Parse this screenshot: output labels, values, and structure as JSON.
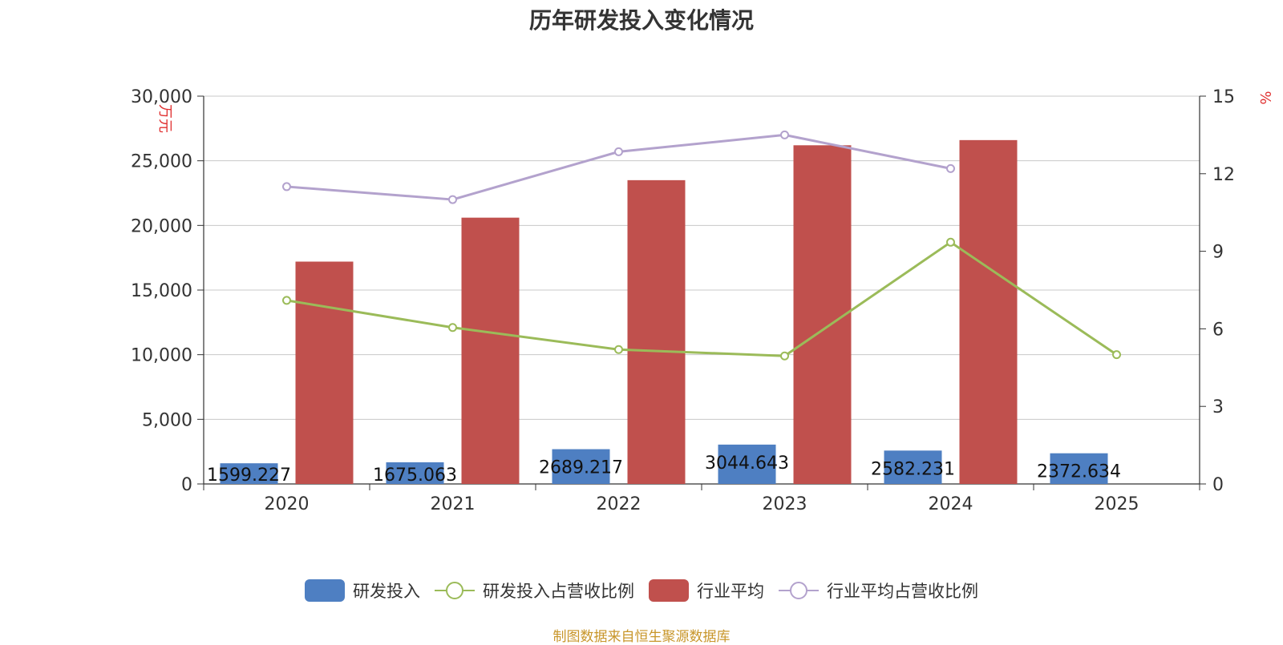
{
  "chart_data": {
    "type": "bar",
    "title": "历年研发投入变化情况",
    "categories": [
      "2020",
      "2021",
      "2022",
      "2023",
      "2024",
      "2025"
    ],
    "y_left": {
      "label": "万元",
      "range": [
        0,
        30000
      ],
      "ticks": [
        "0",
        "5,000",
        "10,000",
        "15,000",
        "20,000",
        "25,000",
        "30,000"
      ]
    },
    "y_right": {
      "label": "%",
      "range": [
        0,
        15
      ],
      "ticks": [
        "0",
        "3",
        "6",
        "9",
        "12",
        "15"
      ]
    },
    "grid": true,
    "legend_position": "bottom",
    "series": [
      {
        "name": "研发投入",
        "kind": "bar",
        "axis": "left",
        "color": "#4e7fc2",
        "values": [
          1599.227,
          1675.063,
          2689.217,
          3044.643,
          2582.231,
          2372.634
        ],
        "labels": [
          "1599.227",
          "1675.063",
          "2689.217",
          "3044.643",
          "2582.231",
          "2372.634"
        ]
      },
      {
        "name": "研发投入占营收比例",
        "kind": "line",
        "axis": "right",
        "color": "#9bbb59",
        "values": [
          7.1,
          6.05,
          5.2,
          4.95,
          9.35,
          5.0
        ]
      },
      {
        "name": "行业平均",
        "kind": "bar",
        "axis": "left",
        "color": "#c0504d",
        "values": [
          17200,
          20600,
          23500,
          26200,
          26600,
          null
        ]
      },
      {
        "name": "行业平均占营收比例",
        "kind": "line",
        "axis": "right",
        "color": "#b3a2cd",
        "values": [
          11.5,
          11.0,
          12.85,
          13.5,
          12.2,
          null
        ]
      }
    ]
  },
  "source_note": "制图数据来自恒生聚源数据库"
}
